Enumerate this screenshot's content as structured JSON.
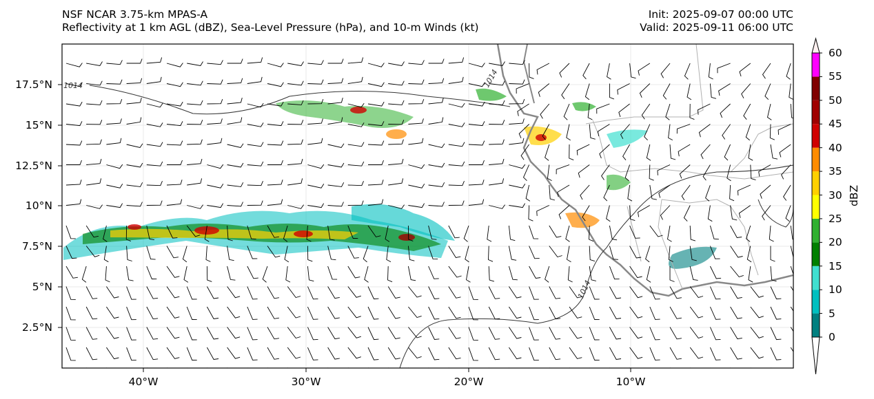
{
  "header": {
    "title_line1": "NSF NCAR 3.75-km MPAS-A",
    "title_line2": "Reflectivity at 1 km AGL (dBZ), Sea-Level Pressure (hPa), and 10-m Winds (kt)",
    "init": "Init: 2025-09-07 00:00 UTC",
    "valid": "Valid: 2025-09-11 06:00 UTC"
  },
  "axes": {
    "lat_labels": [
      "17.5°N",
      "15°N",
      "12.5°N",
      "10°N",
      "7.5°N",
      "5°N",
      "2.5°N"
    ],
    "lon_labels": [
      "40°W",
      "30°W",
      "20°W",
      "10°W"
    ]
  },
  "colorbar": {
    "title": "dBZ",
    "levels": [
      "0",
      "5",
      "10",
      "15",
      "20",
      "25",
      "30",
      "35",
      "40",
      "45",
      "50",
      "55",
      "60"
    ],
    "colors": [
      "#008080",
      "#00c0c0",
      "#40e0d0",
      "#008000",
      "#30b030",
      "#ffff00",
      "#ffd000",
      "#ff8c00",
      "#d00000",
      "#a00000",
      "#800000",
      "#ff00ff",
      "#fff0f0"
    ]
  },
  "isobars": {
    "label": "1014"
  }
}
